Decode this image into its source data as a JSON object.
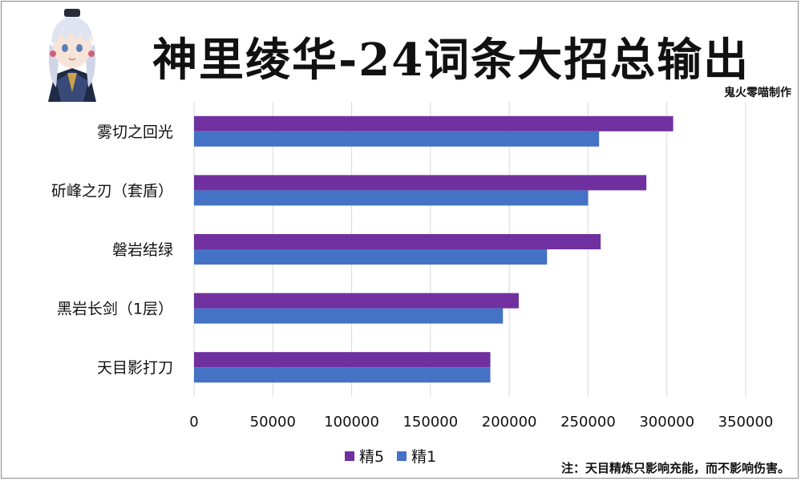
{
  "title": "神里绫华-24词条大招总输出",
  "author": "鬼火零喵制作",
  "note": "注：天目精炼只影响充能，而不影响伤害。",
  "colors": {
    "s5": "#7030a0",
    "s1": "#4472c4",
    "grid": "#d9d9d9"
  },
  "chart_data": {
    "type": "bar",
    "orientation": "horizontal",
    "categories": [
      "雾切之回光",
      "斫峰之刃（套盾）",
      "磐岩结绿",
      "黑岩长剑（1层）",
      "天目影打刀"
    ],
    "series": [
      {
        "name": "精5",
        "values": [
          304000,
          287000,
          258000,
          206000,
          188000
        ]
      },
      {
        "name": "精1",
        "values": [
          257000,
          250000,
          224000,
          196000,
          188000
        ]
      }
    ],
    "xlim": [
      0,
      350000
    ],
    "xticks": [
      0,
      50000,
      100000,
      150000,
      200000,
      250000,
      300000,
      350000
    ],
    "grid": true,
    "legend": "bottom"
  }
}
